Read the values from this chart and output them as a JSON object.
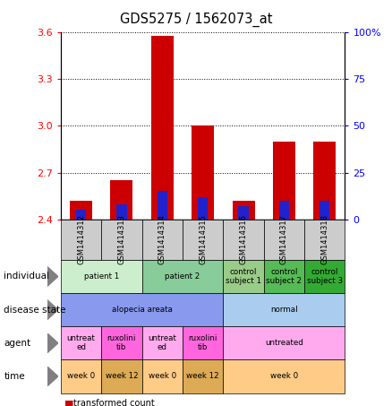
{
  "title": "GDS5275 / 1562073_at",
  "samples": [
    "GSM1414312",
    "GSM1414313",
    "GSM1414314",
    "GSM1414315",
    "GSM1414316",
    "GSM1414317",
    "GSM1414318"
  ],
  "transformed_count": [
    2.52,
    2.65,
    3.58,
    3.0,
    2.52,
    2.9,
    2.9
  ],
  "percentile_rank": [
    5,
    8,
    15,
    12,
    7,
    10,
    10
  ],
  "ylim_left": [
    2.4,
    3.6
  ],
  "yticks_left": [
    2.4,
    2.7,
    3.0,
    3.3,
    3.6
  ],
  "yticks_right": [
    0,
    25,
    50,
    75,
    100
  ],
  "bar_bottom": 2.4,
  "bar_width": 0.55,
  "bar_color_red": "#cc0000",
  "bar_color_blue": "#2222cc",
  "annotations": {
    "individual": {
      "label": "individual",
      "groups": [
        {
          "cols": [
            0,
            1
          ],
          "text": "patient 1",
          "color": "#cceecc"
        },
        {
          "cols": [
            2,
            3
          ],
          "text": "patient 2",
          "color": "#88cc99"
        },
        {
          "cols": [
            4
          ],
          "text": "control\nsubject 1",
          "color": "#99cc88"
        },
        {
          "cols": [
            5
          ],
          "text": "control\nsubject 2",
          "color": "#55bb55"
        },
        {
          "cols": [
            6
          ],
          "text": "control\nsubject 3",
          "color": "#33aa33"
        }
      ]
    },
    "disease_state": {
      "label": "disease state",
      "groups": [
        {
          "cols": [
            0,
            1,
            2,
            3
          ],
          "text": "alopecia areata",
          "color": "#8899ee"
        },
        {
          "cols": [
            4,
            5,
            6
          ],
          "text": "normal",
          "color": "#aaccee"
        }
      ]
    },
    "agent": {
      "label": "agent",
      "groups": [
        {
          "cols": [
            0
          ],
          "text": "untreat\ned",
          "color": "#ffaaee"
        },
        {
          "cols": [
            1
          ],
          "text": "ruxolini\ntib",
          "color": "#ff66dd"
        },
        {
          "cols": [
            2
          ],
          "text": "untreat\ned",
          "color": "#ffaaee"
        },
        {
          "cols": [
            3
          ],
          "text": "ruxolini\ntib",
          "color": "#ff66dd"
        },
        {
          "cols": [
            4,
            5,
            6
          ],
          "text": "untreated",
          "color": "#ffaaee"
        }
      ]
    },
    "time": {
      "label": "time",
      "groups": [
        {
          "cols": [
            0
          ],
          "text": "week 0",
          "color": "#ffcc88"
        },
        {
          "cols": [
            1
          ],
          "text": "week 12",
          "color": "#ddaa55"
        },
        {
          "cols": [
            2
          ],
          "text": "week 0",
          "color": "#ffcc88"
        },
        {
          "cols": [
            3
          ],
          "text": "week 12",
          "color": "#ddaa55"
        },
        {
          "cols": [
            4,
            5,
            6
          ],
          "text": "week 0",
          "color": "#ffcc88"
        }
      ]
    }
  },
  "annot_row_order": [
    "individual",
    "disease_state",
    "agent",
    "time"
  ],
  "annot_row_labels": [
    "individual",
    "disease state",
    "agent",
    "time"
  ]
}
